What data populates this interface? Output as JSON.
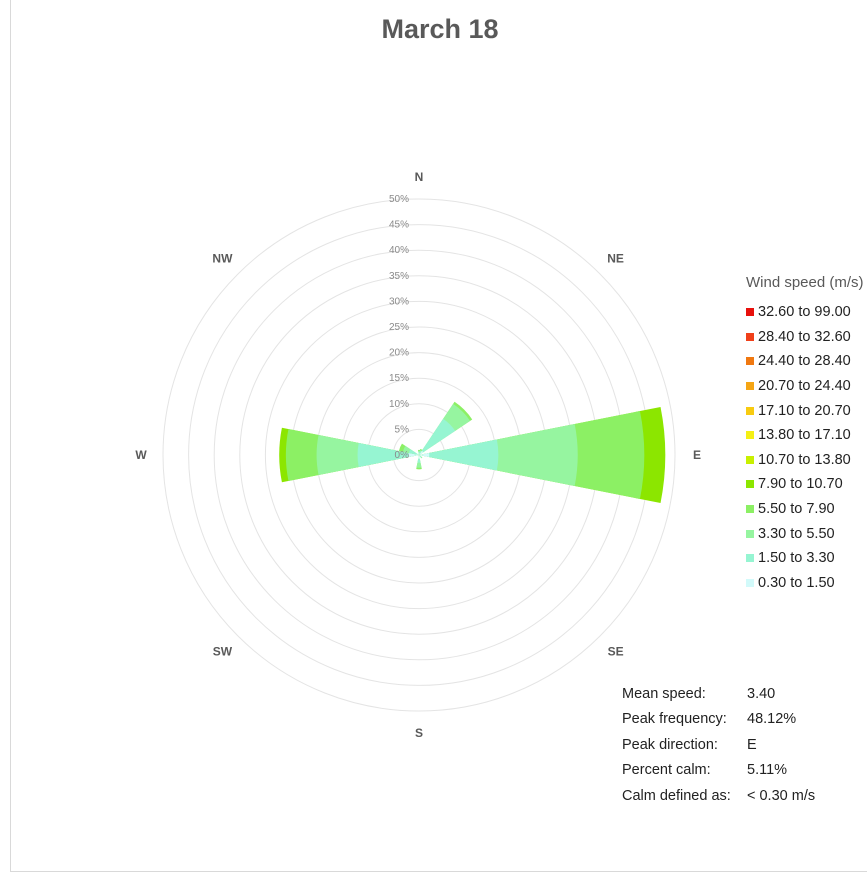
{
  "chart_data": {
    "type": "windrose",
    "title": "March 18",
    "directions": [
      "N",
      "NE",
      "E",
      "SE",
      "S",
      "SW",
      "W",
      "NW"
    ],
    "radial_ticks": [
      "0%",
      "5%",
      "10%",
      "15%",
      "20%",
      "25%",
      "30%",
      "35%",
      "40%",
      "45%",
      "50%"
    ],
    "radial_max": 50,
    "legend_title": "Wind speed (m/s)",
    "speed_bins": [
      {
        "label": "32.60 to 99.00",
        "color": "#e8100c"
      },
      {
        "label": "28.40 to 32.60",
        "color": "#f0401a"
      },
      {
        "label": "24.40 to 28.40",
        "color": "#f07810"
      },
      {
        "label": "20.70 to 24.40",
        "color": "#f5a514"
      },
      {
        "label": "17.10 to 20.70",
        "color": "#f8cb10"
      },
      {
        "label": "13.80 to 17.10",
        "color": "#f5f014"
      },
      {
        "label": "10.70 to 13.80",
        "color": "#c8f000"
      },
      {
        "label": "7.90 to 10.70",
        "color": "#8ce600"
      },
      {
        "label": "5.50 to 7.90",
        "color": "#8cf064"
      },
      {
        "label": "3.30 to 5.50",
        "color": "#96f5a0"
      },
      {
        "label": "1.50 to 3.30",
        "color": "#96f5d2"
      },
      {
        "label": "0.30 to 1.50",
        "color": "#d2fafa"
      }
    ],
    "series": [
      {
        "direction": "N",
        "cumulative": [
          0.3,
          0.6,
          0.8,
          1.0
        ]
      },
      {
        "direction": "NNE",
        "cumulative": [
          0.4,
          0.8,
          1.0,
          1.2
        ]
      },
      {
        "direction": "NE",
        "cumulative": [
          1.0,
          8.5,
          12.0,
          12.5
        ]
      },
      {
        "direction": "E",
        "cumulative": [
          2.0,
          15.5,
          31.0,
          44.0,
          48.1
        ]
      },
      {
        "direction": "SE",
        "cumulative": [
          0.3,
          0.6,
          0.8
        ]
      },
      {
        "direction": "S",
        "cumulative": [
          0.8,
          1.5,
          2.5,
          2.8
        ]
      },
      {
        "direction": "W",
        "cumulative": [
          2.0,
          12.0,
          20.0,
          26.0,
          27.3
        ]
      },
      {
        "direction": "WNW",
        "cumulative": [
          0.5,
          2.0,
          3.2,
          4.0
        ]
      }
    ]
  },
  "stats": [
    {
      "label": "Mean speed:",
      "value": "3.40"
    },
    {
      "label": "Peak frequency:",
      "value": "48.12%"
    },
    {
      "label": "Peak direction:",
      "value": "E"
    },
    {
      "label": "Percent calm:",
      "value": "5.11%"
    },
    {
      "label": "Calm defined as:",
      "value": "< 0.30 m/s"
    }
  ]
}
